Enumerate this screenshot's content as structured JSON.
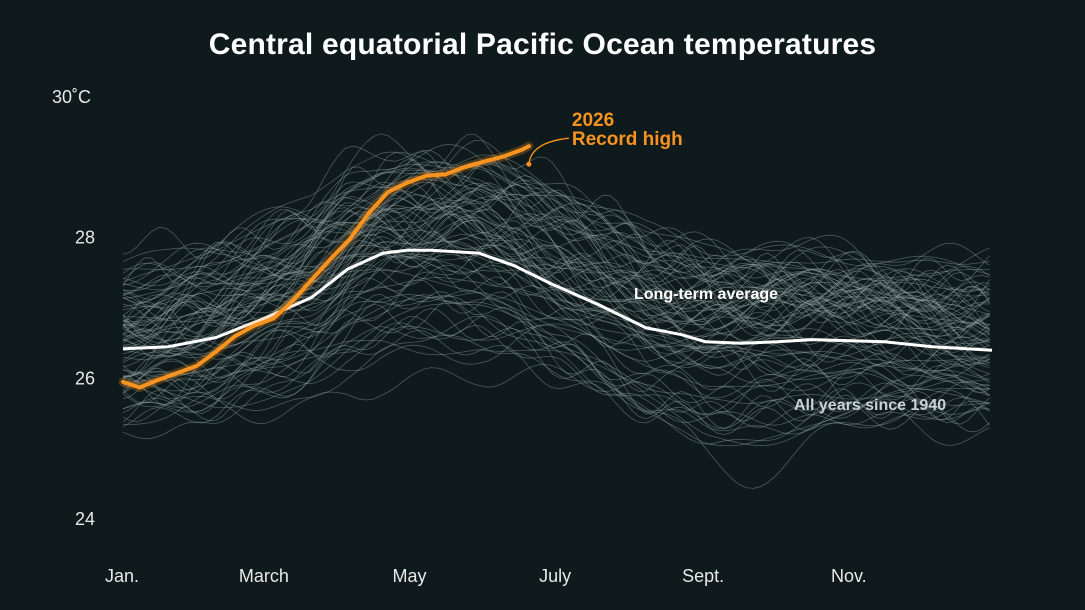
{
  "chart_data": {
    "type": "line",
    "title": "Central equatorial Pacific Ocean temperatures",
    "xlabel": "",
    "ylabel": "",
    "y_ticks": [
      {
        "value": 30,
        "label": "30˚C"
      },
      {
        "value": 28,
        "label": "28"
      },
      {
        "value": 26,
        "label": "26"
      },
      {
        "value": 24,
        "label": "24"
      }
    ],
    "ylim": [
      24,
      30
    ],
    "x_ticks": [
      {
        "value": 1,
        "label": "Jan."
      },
      {
        "value": 60,
        "label": "March"
      },
      {
        "value": 121,
        "label": "May"
      },
      {
        "value": 182,
        "label": "July"
      },
      {
        "value": 244,
        "label": "Sept."
      },
      {
        "value": 305,
        "label": "Nov."
      }
    ],
    "xlim": [
      1,
      365
    ],
    "grid": false,
    "colors": {
      "background": "#0e1a1b",
      "highlight": "#f7931e",
      "average": "#ffffff",
      "years": "#9aa8ad"
    },
    "series": [
      {
        "name": "2026",
        "note": "Record high",
        "color": "#f7931e",
        "x": [
          1,
          8,
          16,
          24,
          32,
          40,
          48,
          56,
          64,
          72,
          80,
          88,
          96,
          104,
          112,
          120,
          128,
          136,
          144,
          152,
          160,
          168,
          171
        ],
        "y": [
          25.95,
          25.87,
          25.98,
          26.08,
          26.18,
          26.38,
          26.6,
          26.75,
          26.85,
          27.1,
          27.4,
          27.7,
          27.98,
          28.35,
          28.65,
          28.78,
          28.88,
          28.9,
          29.0,
          29.08,
          29.15,
          29.25,
          29.3
        ]
      },
      {
        "name": "Long-term average",
        "color": "#ffffff",
        "x": [
          1,
          20,
          40,
          60,
          80,
          95,
          110,
          120,
          130,
          150,
          165,
          180,
          200,
          220,
          235,
          245,
          260,
          275,
          290,
          320,
          340,
          365
        ],
        "y": [
          26.42,
          26.45,
          26.58,
          26.85,
          27.15,
          27.55,
          27.78,
          27.82,
          27.82,
          27.78,
          27.6,
          27.35,
          27.05,
          26.72,
          26.62,
          26.52,
          26.5,
          26.52,
          26.55,
          26.52,
          26.45,
          26.4
        ]
      }
    ],
    "background_lines_label": "All years since 1940"
  }
}
